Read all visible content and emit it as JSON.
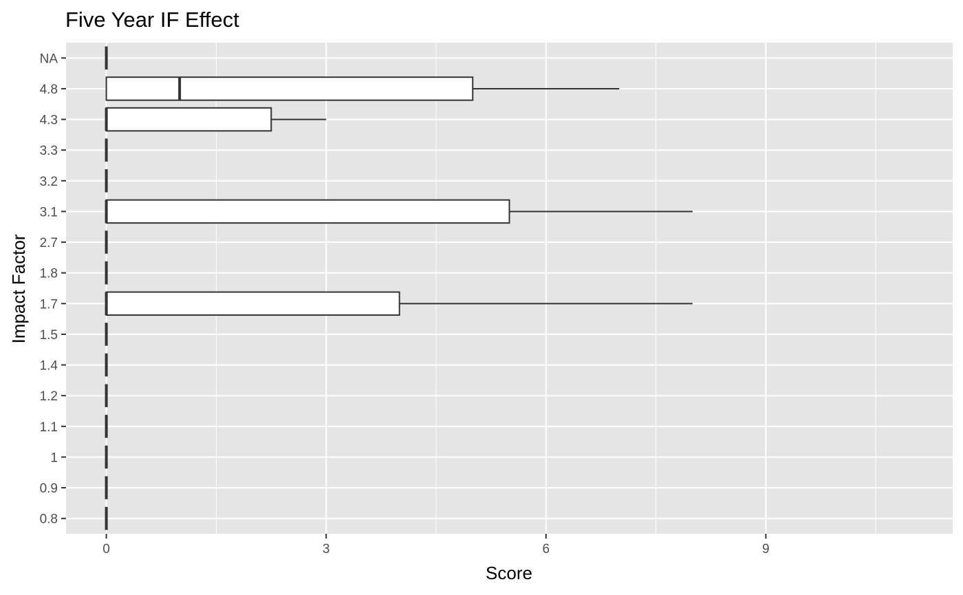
{
  "chart_data": {
    "type": "boxplot",
    "orientation": "horizontal",
    "title": "Five Year IF Effect",
    "xlabel": "Score",
    "ylabel": "Impact Factor",
    "xlim": [
      -0.55,
      11.55
    ],
    "x_ticks": [
      0,
      3,
      6,
      9
    ],
    "x_minor_gridlines": [
      1.5,
      4.5,
      7.5,
      10.5
    ],
    "grid": true,
    "categories": [
      "0.8",
      "0.9",
      "1",
      "1.1",
      "1.2",
      "1.4",
      "1.5",
      "1.7",
      "1.8",
      "2.7",
      "3.1",
      "3.2",
      "3.3",
      "4.3",
      "4.8",
      "NA"
    ],
    "boxes": [
      {
        "category": "0.8",
        "min": 0,
        "q1": 0,
        "median": 0,
        "q3": 0,
        "max": 0
      },
      {
        "category": "0.9",
        "min": 0,
        "q1": 0,
        "median": 0,
        "q3": 0,
        "max": 0
      },
      {
        "category": "1",
        "min": 0,
        "q1": 0,
        "median": 0,
        "q3": 0,
        "max": 0
      },
      {
        "category": "1.1",
        "min": 0,
        "q1": 0,
        "median": 0,
        "q3": 0,
        "max": 0
      },
      {
        "category": "1.2",
        "min": 0,
        "q1": 0,
        "median": 0,
        "q3": 0,
        "max": 0
      },
      {
        "category": "1.4",
        "min": 0,
        "q1": 0,
        "median": 0,
        "q3": 0,
        "max": 0
      },
      {
        "category": "1.5",
        "min": 0,
        "q1": 0,
        "median": 0,
        "q3": 0,
        "max": 0
      },
      {
        "category": "1.7",
        "min": 0,
        "q1": 0,
        "median": 0,
        "q3": 4,
        "max": 8
      },
      {
        "category": "1.8",
        "min": 0,
        "q1": 0,
        "median": 0,
        "q3": 0,
        "max": 0
      },
      {
        "category": "2.7",
        "min": 0,
        "q1": 0,
        "median": 0,
        "q3": 0,
        "max": 0
      },
      {
        "category": "3.1",
        "min": 0,
        "q1": 0,
        "median": 0,
        "q3": 5.5,
        "max": 8
      },
      {
        "category": "3.2",
        "min": 0,
        "q1": 0,
        "median": 0,
        "q3": 0,
        "max": 0
      },
      {
        "category": "3.3",
        "min": 0,
        "q1": 0,
        "median": 0,
        "q3": 0,
        "max": 0
      },
      {
        "category": "4.3",
        "min": 0,
        "q1": 0,
        "median": 0,
        "q3": 2.25,
        "max": 3
      },
      {
        "category": "4.8",
        "min": 0,
        "q1": 0,
        "median": 1,
        "q3": 5,
        "max": 7
      },
      {
        "category": "NA",
        "min": 0,
        "q1": 0,
        "median": 0,
        "q3": 0,
        "max": 0
      }
    ],
    "colors": {
      "panel_background": "#e5e5e5",
      "gridline": "#ffffff",
      "box_fill": "#ffffff",
      "box_stroke": "#333333",
      "tick_label": "#4d4d4d",
      "tick_mark": "#333333"
    }
  }
}
